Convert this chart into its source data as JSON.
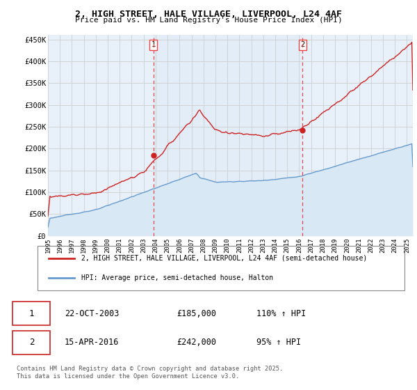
{
  "title": "2, HIGH STREET, HALE VILLAGE, LIVERPOOL, L24 4AF",
  "subtitle": "Price paid vs. HM Land Registry's House Price Index (HPI)",
  "ylabel_ticks": [
    "£0",
    "£50K",
    "£100K",
    "£150K",
    "£200K",
    "£250K",
    "£300K",
    "£350K",
    "£400K",
    "£450K"
  ],
  "ytick_vals": [
    0,
    50000,
    100000,
    150000,
    200000,
    250000,
    300000,
    350000,
    400000,
    450000
  ],
  "ylim": [
    0,
    460000
  ],
  "xlim_start": 1995.0,
  "xlim_end": 2025.5,
  "sale1_date": 2003.81,
  "sale1_price": 185000,
  "sale1_label": "1",
  "sale2_date": 2016.29,
  "sale2_price": 242000,
  "sale2_label": "2",
  "hpi_color": "#6699cc",
  "hpi_fill_color": "#d8e8f5",
  "price_color": "#cc2222",
  "dashed_color": "#ee4444",
  "background_color": "#ffffff",
  "plot_bg_color": "#e8f0fa",
  "grid_color": "#c8c8c8",
  "legend_label_price": "2, HIGH STREET, HALE VILLAGE, LIVERPOOL, L24 4AF (semi-detached house)",
  "legend_label_hpi": "HPI: Average price, semi-detached house, Halton",
  "table_row1": [
    "1",
    "22-OCT-2003",
    "£185,000",
    "110% ↑ HPI"
  ],
  "table_row2": [
    "2",
    "15-APR-2016",
    "£242,000",
    "95% ↑ HPI"
  ],
  "footer": "Contains HM Land Registry data © Crown copyright and database right 2025.\nThis data is licensed under the Open Government Licence v3.0.",
  "xtick_years": [
    1995,
    1996,
    1997,
    1998,
    1999,
    2000,
    2001,
    2002,
    2003,
    2004,
    2005,
    2006,
    2007,
    2008,
    2009,
    2010,
    2011,
    2012,
    2013,
    2014,
    2015,
    2016,
    2017,
    2018,
    2019,
    2020,
    2021,
    2022,
    2023,
    2024,
    2025
  ]
}
